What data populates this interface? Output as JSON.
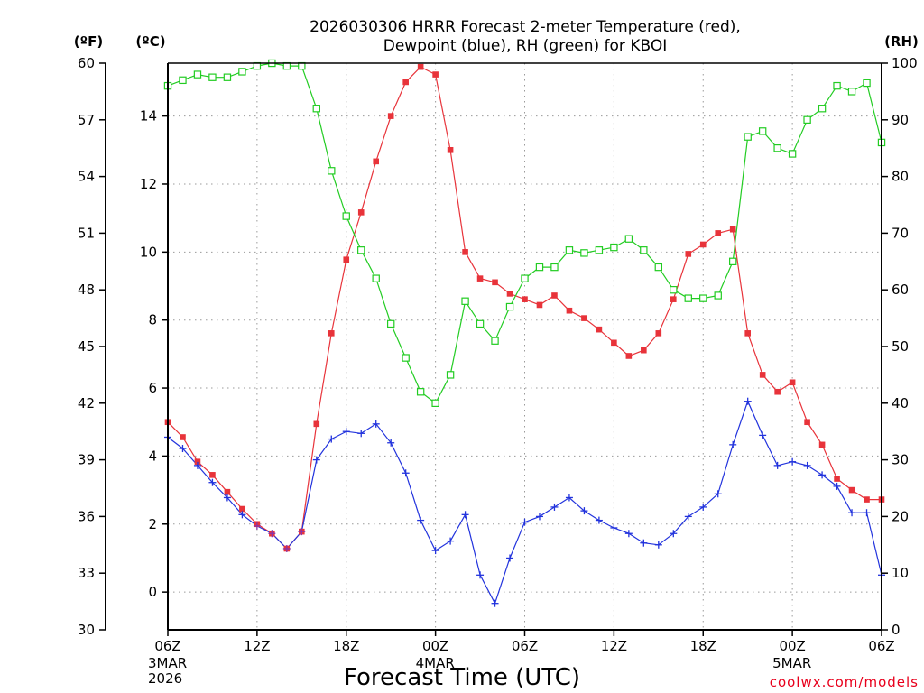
{
  "chart_data": {
    "type": "line",
    "title_line1": "2026030306 HRRR Forecast 2-meter Temperature (red),",
    "title_line2": "Dewpoint (blue), RH (green) for KBOI",
    "xlabel": "Forecast Time (UTC)",
    "credit": "coolwx.com/models",
    "units": {
      "fahrenheit": "(ºF)",
      "celsius": "(ºC)",
      "rh": "(RH)"
    },
    "x_range_hours": [
      0,
      48
    ],
    "x_ticks": [
      {
        "h": 0,
        "label": "06Z",
        "sub": [
          "3MAR",
          "2026"
        ]
      },
      {
        "h": 6,
        "label": "12Z",
        "sub": []
      },
      {
        "h": 12,
        "label": "18Z",
        "sub": []
      },
      {
        "h": 18,
        "label": "00Z",
        "sub": [
          "4MAR"
        ]
      },
      {
        "h": 24,
        "label": "06Z",
        "sub": []
      },
      {
        "h": 30,
        "label": "12Z",
        "sub": []
      },
      {
        "h": 36,
        "label": "18Z",
        "sub": []
      },
      {
        "h": 42,
        "label": "00Z",
        "sub": [
          "5MAR"
        ]
      },
      {
        "h": 48,
        "label": "06Z",
        "sub": []
      }
    ],
    "y_left_f": {
      "range": [
        30,
        60
      ],
      "ticks": [
        "30",
        "33",
        "36",
        "39",
        "42",
        "45",
        "48",
        "51",
        "54",
        "57",
        "60"
      ]
    },
    "y_left_c": {
      "range": [
        -1.1111,
        15.5556
      ],
      "ticks": [
        "0",
        "2",
        "4",
        "6",
        "8",
        "10",
        "12",
        "14"
      ]
    },
    "y_right_rh": {
      "range": [
        0,
        100
      ],
      "ticks": [
        "0",
        "10",
        "20",
        "30",
        "40",
        "50",
        "60",
        "70",
        "80",
        "90",
        "100"
      ]
    },
    "grid": true,
    "colors": {
      "temperature": "#e8333a",
      "dewpoint": "#2233dd",
      "rh": "#22cc22",
      "overlap": "#8833aa"
    },
    "series": [
      {
        "name": "Temperature",
        "units": "F",
        "values": [
          41.0,
          40.2,
          38.9,
          38.2,
          37.3,
          36.4,
          35.6,
          35.1,
          34.3,
          35.2,
          40.9,
          45.7,
          49.6,
          52.1,
          54.8,
          57.2,
          59.0,
          59.8,
          59.4,
          55.4,
          50.0,
          48.6,
          48.4,
          47.8,
          47.5,
          47.2,
          47.7,
          46.9,
          46.5,
          45.9,
          45.2,
          44.5,
          44.8,
          45.7,
          47.5,
          49.9,
          50.4,
          51.0,
          51.2,
          45.7,
          43.5,
          42.6,
          43.1,
          41.0,
          39.8,
          38.0,
          37.4,
          36.9,
          36.9
        ]
      },
      {
        "name": "Dewpoint",
        "units": "F",
        "values": [
          40.2,
          39.6,
          38.7,
          37.8,
          37.0,
          36.1,
          35.5,
          35.1,
          34.3,
          35.2,
          39.0,
          40.1,
          40.5,
          40.4,
          40.9,
          39.9,
          38.3,
          35.8,
          34.2,
          34.7,
          36.1,
          32.9,
          31.4,
          33.8,
          35.7,
          36.0,
          36.5,
          37.0,
          36.3,
          35.8,
          35.4,
          35.1,
          34.6,
          34.5,
          35.1,
          36.0,
          36.5,
          37.2,
          39.8,
          42.1,
          40.3,
          38.7,
          38.9,
          38.7,
          38.2,
          37.6,
          36.2,
          36.2,
          32.9
        ]
      },
      {
        "name": "RH",
        "units": "%",
        "values": [
          96,
          97,
          98,
          97.5,
          97.5,
          98.5,
          99.5,
          100,
          99.5,
          99.5,
          92,
          81,
          73,
          67,
          62,
          54,
          48,
          42,
          40,
          45,
          58,
          54,
          51,
          57,
          62,
          64,
          64,
          67,
          66.5,
          67,
          67.5,
          69,
          67,
          64,
          60,
          58.5,
          58.5,
          59,
          65,
          87,
          88,
          85,
          84,
          90,
          92,
          96,
          95,
          96.5,
          86
        ]
      }
    ]
  }
}
